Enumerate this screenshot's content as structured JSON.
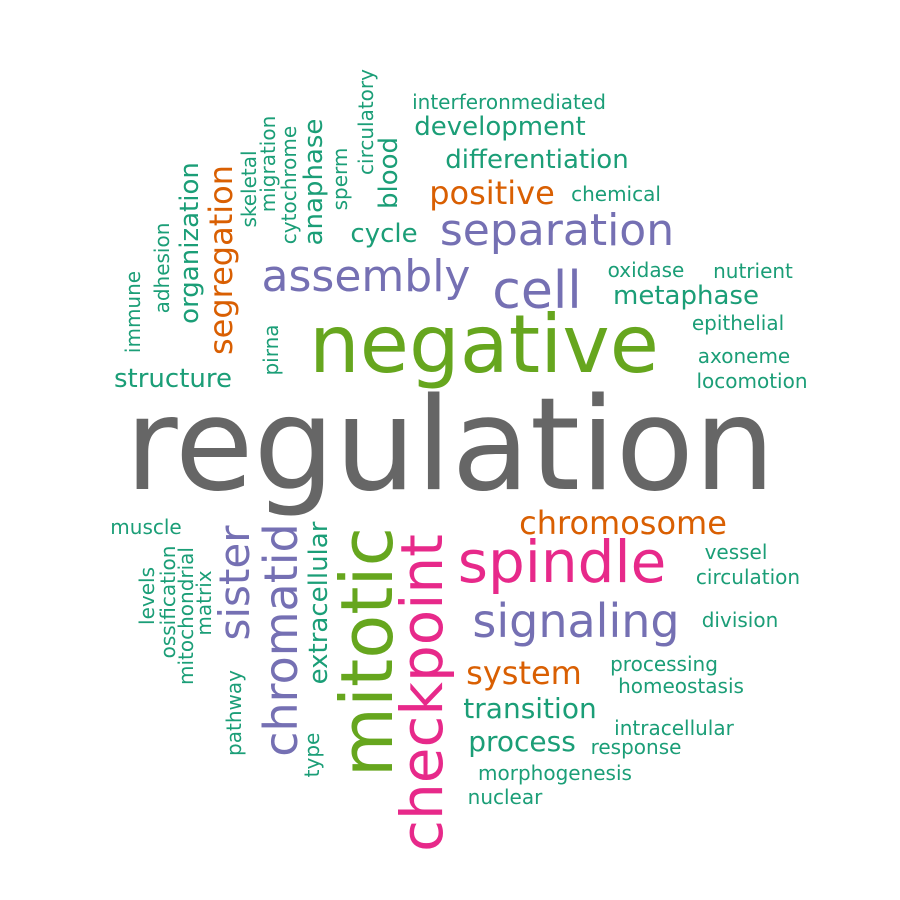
{
  "colors": {
    "gray": "#666666",
    "green": "#66a61e",
    "purple": "#7570b3",
    "pink": "#e7298a",
    "orange": "#d95f02",
    "teal": "#1b9e77"
  },
  "words": {
    "regulation": "regulation",
    "negative": "negative",
    "mitotic": "mitotic",
    "checkpoint": "checkpoint",
    "spindle": "spindle",
    "chromatid": "chromatid",
    "sister": "sister",
    "signaling": "signaling",
    "separation": "separation",
    "assembly": "assembly",
    "cell": "cell",
    "chromosome": "chromosome",
    "system": "system",
    "positive": "positive",
    "segregation": "segregation",
    "transition": "transition",
    "process": "process",
    "metaphase": "metaphase",
    "development": "development",
    "differentiation": "differentiation",
    "structure": "structure",
    "organization": "organization",
    "anaphase": "anaphase",
    "extracellular": "extracellular",
    "cycle": "cycle",
    "blood": "blood",
    "interferonmediated": "interferonmediated",
    "chemical": "chemical",
    "oxidase": "oxidase",
    "nutrient": "nutrient",
    "epithelial": "epithelial",
    "axoneme": "axoneme",
    "locomotion": "locomotion",
    "vessel": "vessel",
    "circulation": "circulation",
    "division": "division",
    "processing": "processing",
    "homeostasis": "homeostasis",
    "intracellular": "intracellular",
    "response": "response",
    "morphogenesis": "morphogenesis",
    "nuclear": "nuclear",
    "muscle": "muscle",
    "circulatory": "circulatory",
    "sperm": "sperm",
    "cytochrome": "cytochrome",
    "migration": "migration",
    "skeletal": "skeletal",
    "adhesion": "adhesion",
    "immune": "immune",
    "pirna": "pirna",
    "levels": "levels",
    "ossification": "ossification",
    "mitochondrial": "mitochondrial",
    "matrix": "matrix",
    "pathway": "pathway",
    "type": "type"
  }
}
